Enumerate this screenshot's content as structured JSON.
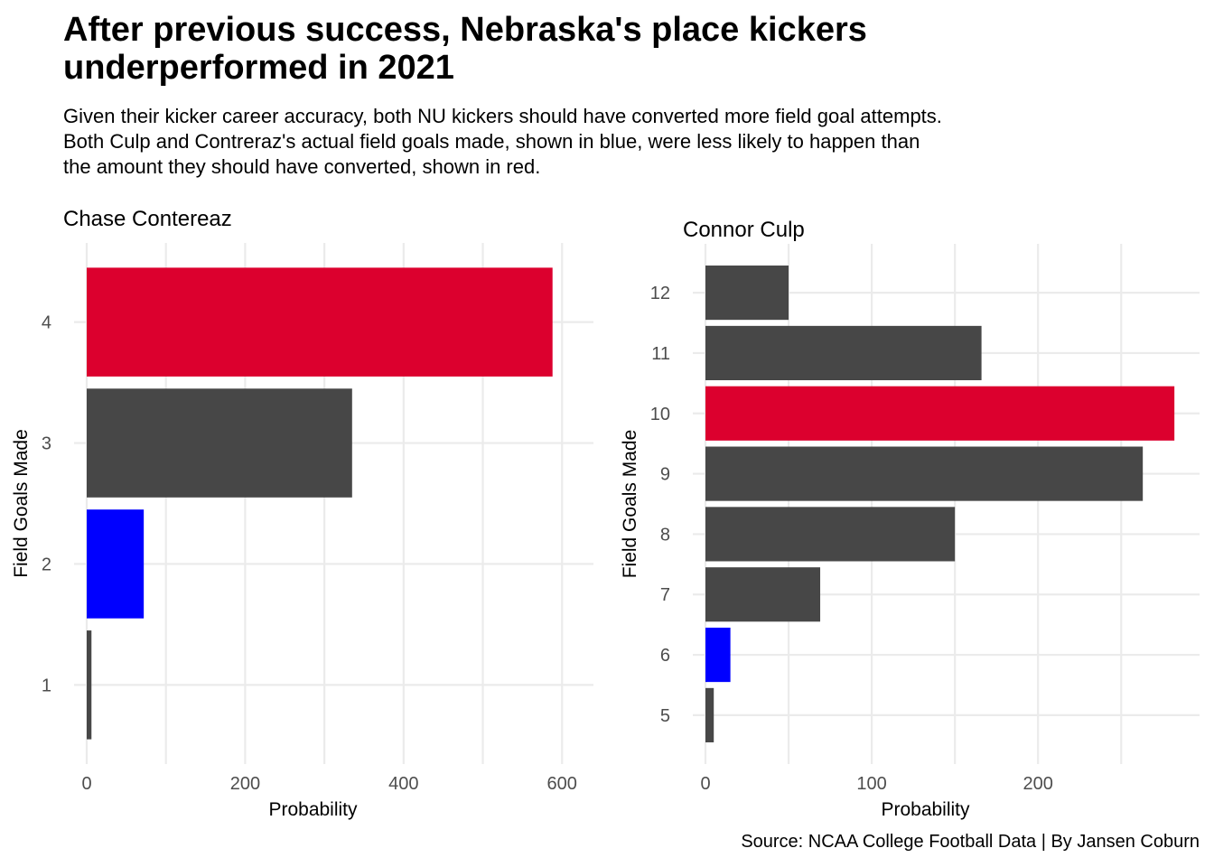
{
  "chart_title": "After previous success, Nebraska's place kickers underperformed in 2021",
  "chart_subtitle_lines": [
    "Given their kicker career accuracy, both NU kickers should have converted more field goal attempts.",
    "Both Culp and Contreraz's actual field goals made, shown in blue, were less likely to happen than",
    "the amount they should have converted, shown in red."
  ],
  "caption": "Source: NCAA College Football Data | By Jansen Coburn",
  "colors": {
    "actual": "#0000ff",
    "expected": "#dc002e",
    "other": "#474747",
    "grid": "#ebebeb"
  },
  "chart_data": [
    {
      "type": "bar",
      "orientation": "horizontal",
      "title": "Chase Contereaz",
      "xlabel": "Probability",
      "ylabel": "Field Goals Made",
      "xlim": [
        0,
        610
      ],
      "xticks": [
        0,
        200,
        400,
        600
      ],
      "grid": true,
      "categories": [
        1,
        2,
        3,
        4
      ],
      "values": [
        6,
        72,
        335,
        588
      ],
      "highlight": [
        "other",
        "actual",
        "other",
        "expected"
      ]
    },
    {
      "type": "bar",
      "orientation": "horizontal",
      "title": "Connor Culp",
      "xlabel": "Probability",
      "ylabel": "Field Goals Made",
      "xlim": [
        0,
        283
      ],
      "xticks": [
        0,
        100,
        200
      ],
      "grid": true,
      "categories": [
        5,
        6,
        7,
        8,
        9,
        10,
        11,
        12
      ],
      "values": [
        5,
        15,
        69,
        150,
        263,
        282,
        166,
        50
      ],
      "highlight": [
        "other",
        "actual",
        "other",
        "other",
        "other",
        "expected",
        "other",
        "other"
      ]
    }
  ]
}
